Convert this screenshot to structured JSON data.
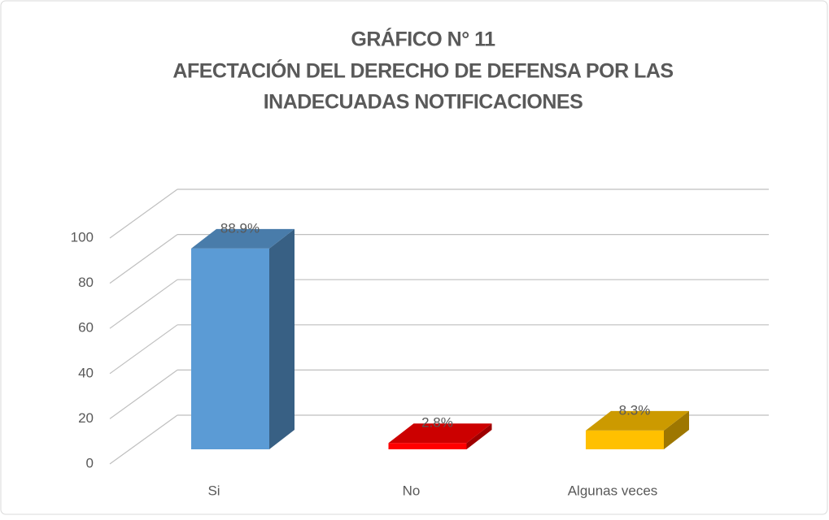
{
  "chart_data": {
    "type": "bar3d",
    "title": [
      "GRÁFICO N° 11",
      "AFECTACIÓN DEL DERECHO DE DEFENSA POR LAS",
      "INADECUADAS NOTIFICACIONES"
    ],
    "categories": [
      "Si",
      "No",
      "Algunas veces"
    ],
    "values": [
      88.9,
      2.8,
      8.3
    ],
    "value_labels": [
      "88.9%",
      "2.8%",
      "8.3%"
    ],
    "colors": [
      "#5b9bd5",
      "#ff0000",
      "#ffc000"
    ],
    "ylim": [
      0,
      100
    ],
    "yticks": [
      0,
      20,
      40,
      60,
      80,
      100
    ],
    "grid": true
  }
}
